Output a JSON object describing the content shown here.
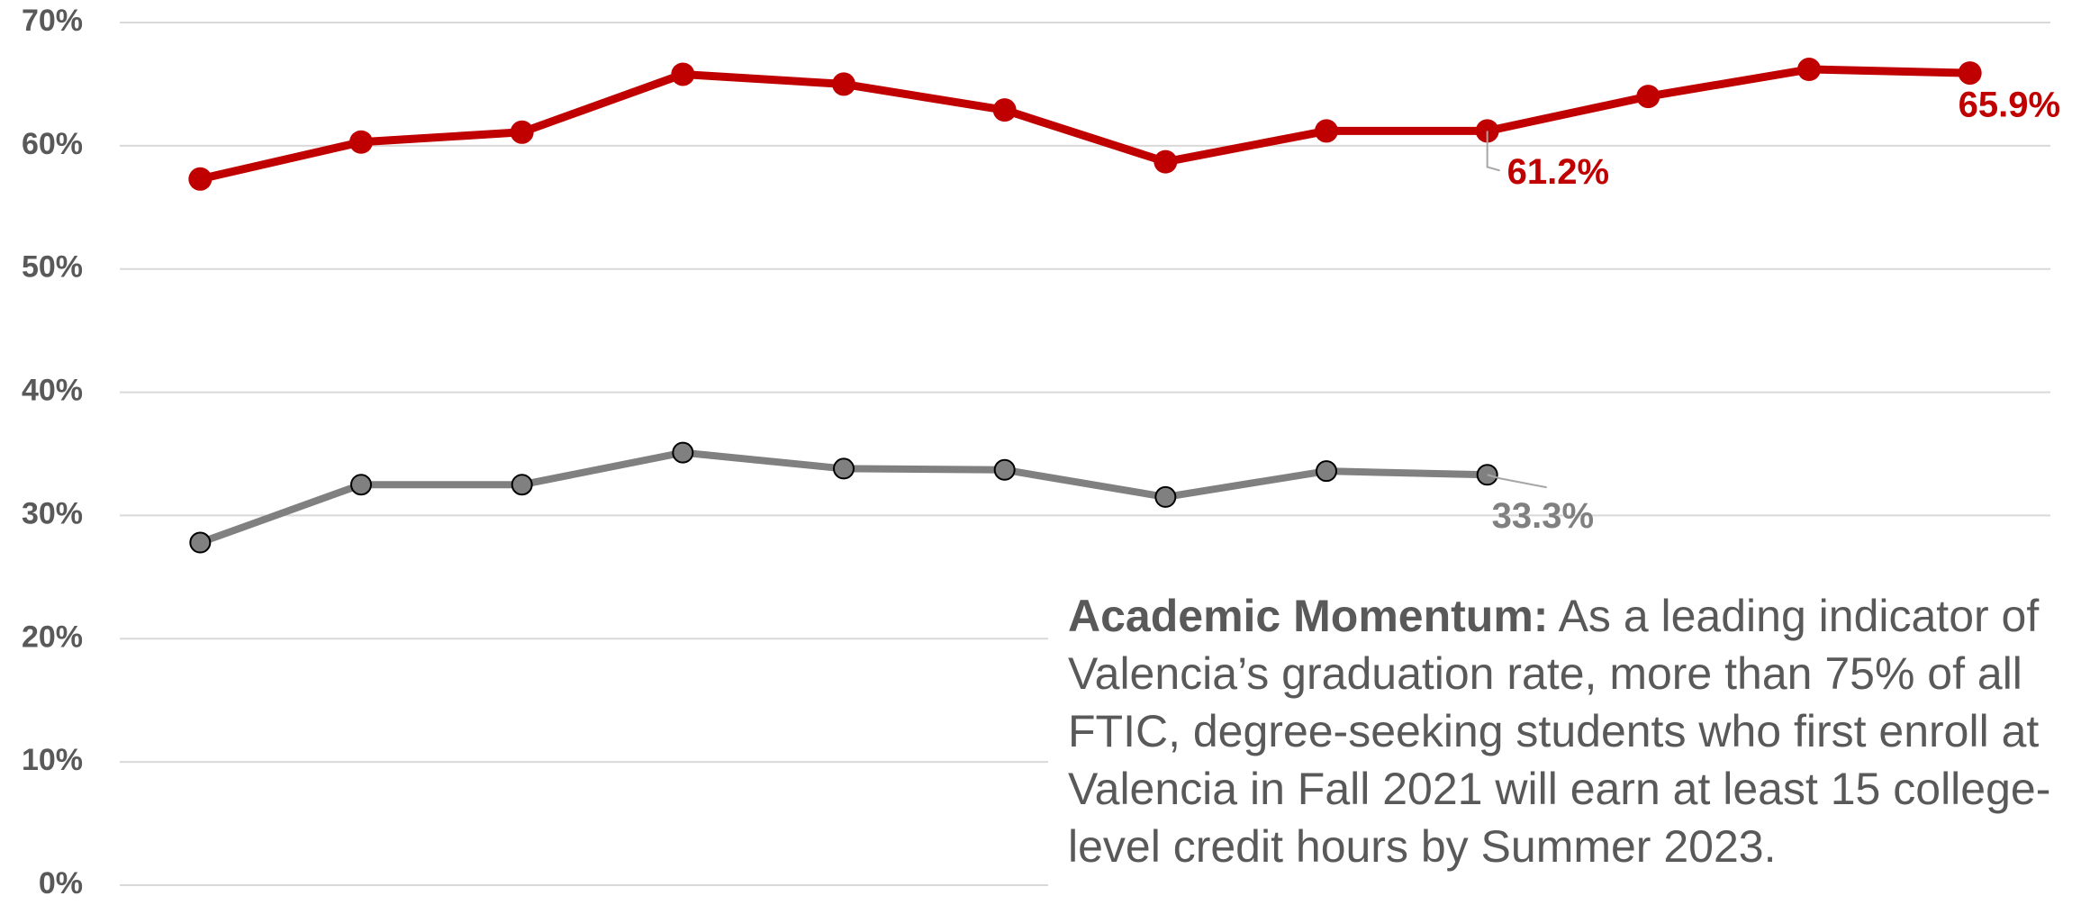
{
  "chart_data": {
    "type": "line",
    "categories": [
      null,
      null,
      null,
      null,
      null,
      null,
      null,
      null,
      null,
      null,
      null,
      null
    ],
    "ylim": [
      0,
      70
    ],
    "yticks": [
      {
        "value": 0,
        "label": "0%"
      },
      {
        "value": 10,
        "label": "10%"
      },
      {
        "value": 20,
        "label": "20%"
      },
      {
        "value": 30,
        "label": "30%"
      },
      {
        "value": 40,
        "label": "40%"
      },
      {
        "value": 50,
        "label": "50%"
      },
      {
        "value": 60,
        "label": "60%"
      },
      {
        "value": 70,
        "label": "70%"
      }
    ],
    "grid": true,
    "series": [
      {
        "color": "#c00000",
        "marker_stroke": "#c00000",
        "values": [
          57.3,
          60.3,
          61.1,
          65.8,
          65.0,
          62.9,
          58.7,
          61.2,
          61.2,
          64.0,
          66.2,
          65.9
        ],
        "value_labels": [
          null,
          null,
          null,
          null,
          null,
          null,
          null,
          null,
          "61.2%",
          null,
          null,
          "65.9%"
        ]
      },
      {
        "color": "#808080",
        "marker_stroke": "#000000",
        "values": [
          27.8,
          32.5,
          32.5,
          35.1,
          33.8,
          33.7,
          31.5,
          33.6,
          33.3,
          null,
          null,
          null
        ],
        "value_labels": [
          null,
          null,
          null,
          null,
          null,
          null,
          null,
          null,
          "33.3%",
          null,
          null,
          null
        ]
      }
    ],
    "annotation": {
      "title": "Academic Momentum:",
      "lines": [
        "As a leading indicator of",
        "Valencia’s graduation rate, more than 75% of all",
        "FTIC, degree-seeking students who first enroll at",
        "Valencia in Fall 2021 will earn at least 15 college-",
        "level credit hours by Summer 2023."
      ]
    }
  }
}
